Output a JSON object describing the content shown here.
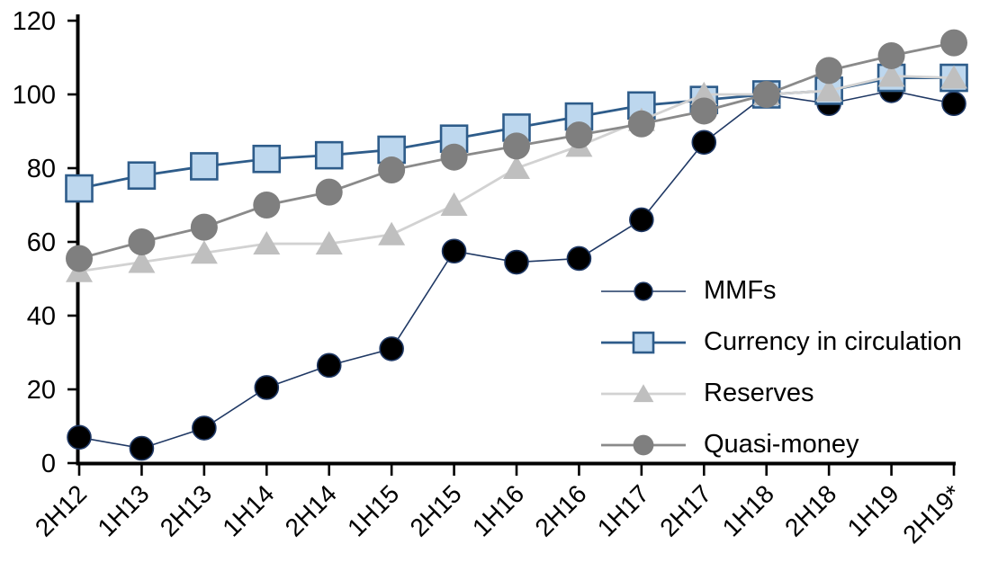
{
  "chart_data": {
    "type": "line",
    "title": "",
    "xlabel": "",
    "ylabel": "",
    "ylim": [
      0,
      120
    ],
    "grid": false,
    "axis_color": "#000000",
    "background_color": "#FFFFFF",
    "categories": [
      "2H12",
      "1H13",
      "2H13",
      "1H14",
      "2H14",
      "1H15",
      "2H15",
      "1H16",
      "2H16",
      "1H17",
      "2H17",
      "1H18",
      "2H18",
      "1H19",
      "2H19*"
    ],
    "y_axis": {
      "min": 0,
      "max": 120,
      "step": 20,
      "tick_labels": [
        "0",
        "20",
        "40",
        "60",
        "80",
        "100",
        "120"
      ]
    },
    "series": [
      {
        "name": "MMFs",
        "marker": "circle",
        "marker_fill": "#000000",
        "marker_stroke": "#1F3864",
        "marker_stroke_width": 1.6,
        "marker_size": 26,
        "line_color": "#1F3864",
        "line_width": 1.6,
        "values": [
          7,
          4,
          9.5,
          20.5,
          26.5,
          31,
          57.5,
          54.5,
          55.5,
          66,
          87,
          100,
          97.5,
          101,
          97.5
        ]
      },
      {
        "name": "Currency in circulation",
        "marker": "square",
        "marker_fill": "#BDD7EE",
        "marker_stroke": "#2E5C8A",
        "marker_stroke_width": 2.6,
        "marker_size": 29,
        "line_color": "#2E5C8A",
        "line_width": 2.8,
        "values": [
          74.5,
          78,
          80.5,
          82.5,
          83.5,
          85,
          88,
          91,
          94,
          97,
          98.5,
          100,
          101,
          104.5,
          104.5
        ]
      },
      {
        "name": "Reserves",
        "marker": "triangle",
        "marker_fill": "#BFBFBF",
        "marker_stroke": "#BFBFBF",
        "marker_stroke_width": 0,
        "marker_size": 30,
        "line_color": "#D2D2D2",
        "line_width": 2.8,
        "values": [
          52,
          54.5,
          57,
          59.5,
          59.5,
          62,
          70,
          80,
          86,
          93,
          100,
          100,
          101,
          105,
          104.5
        ]
      },
      {
        "name": "Quasi-money",
        "marker": "circle",
        "marker_fill": "#7F7F7F",
        "marker_stroke": "#7F7F7F",
        "marker_stroke_width": 0,
        "marker_size": 30,
        "line_color": "#8A8A8A",
        "line_width": 2.8,
        "values": [
          55.5,
          60,
          64,
          70,
          73.5,
          79.5,
          83,
          86,
          89,
          92,
          95.5,
          100,
          106.5,
          110.5,
          114
        ]
      }
    ],
    "legend": {
      "position": "inside-right",
      "items": [
        "MMFs",
        "Currency in circulation",
        "Reserves",
        "Quasi-money"
      ]
    }
  }
}
